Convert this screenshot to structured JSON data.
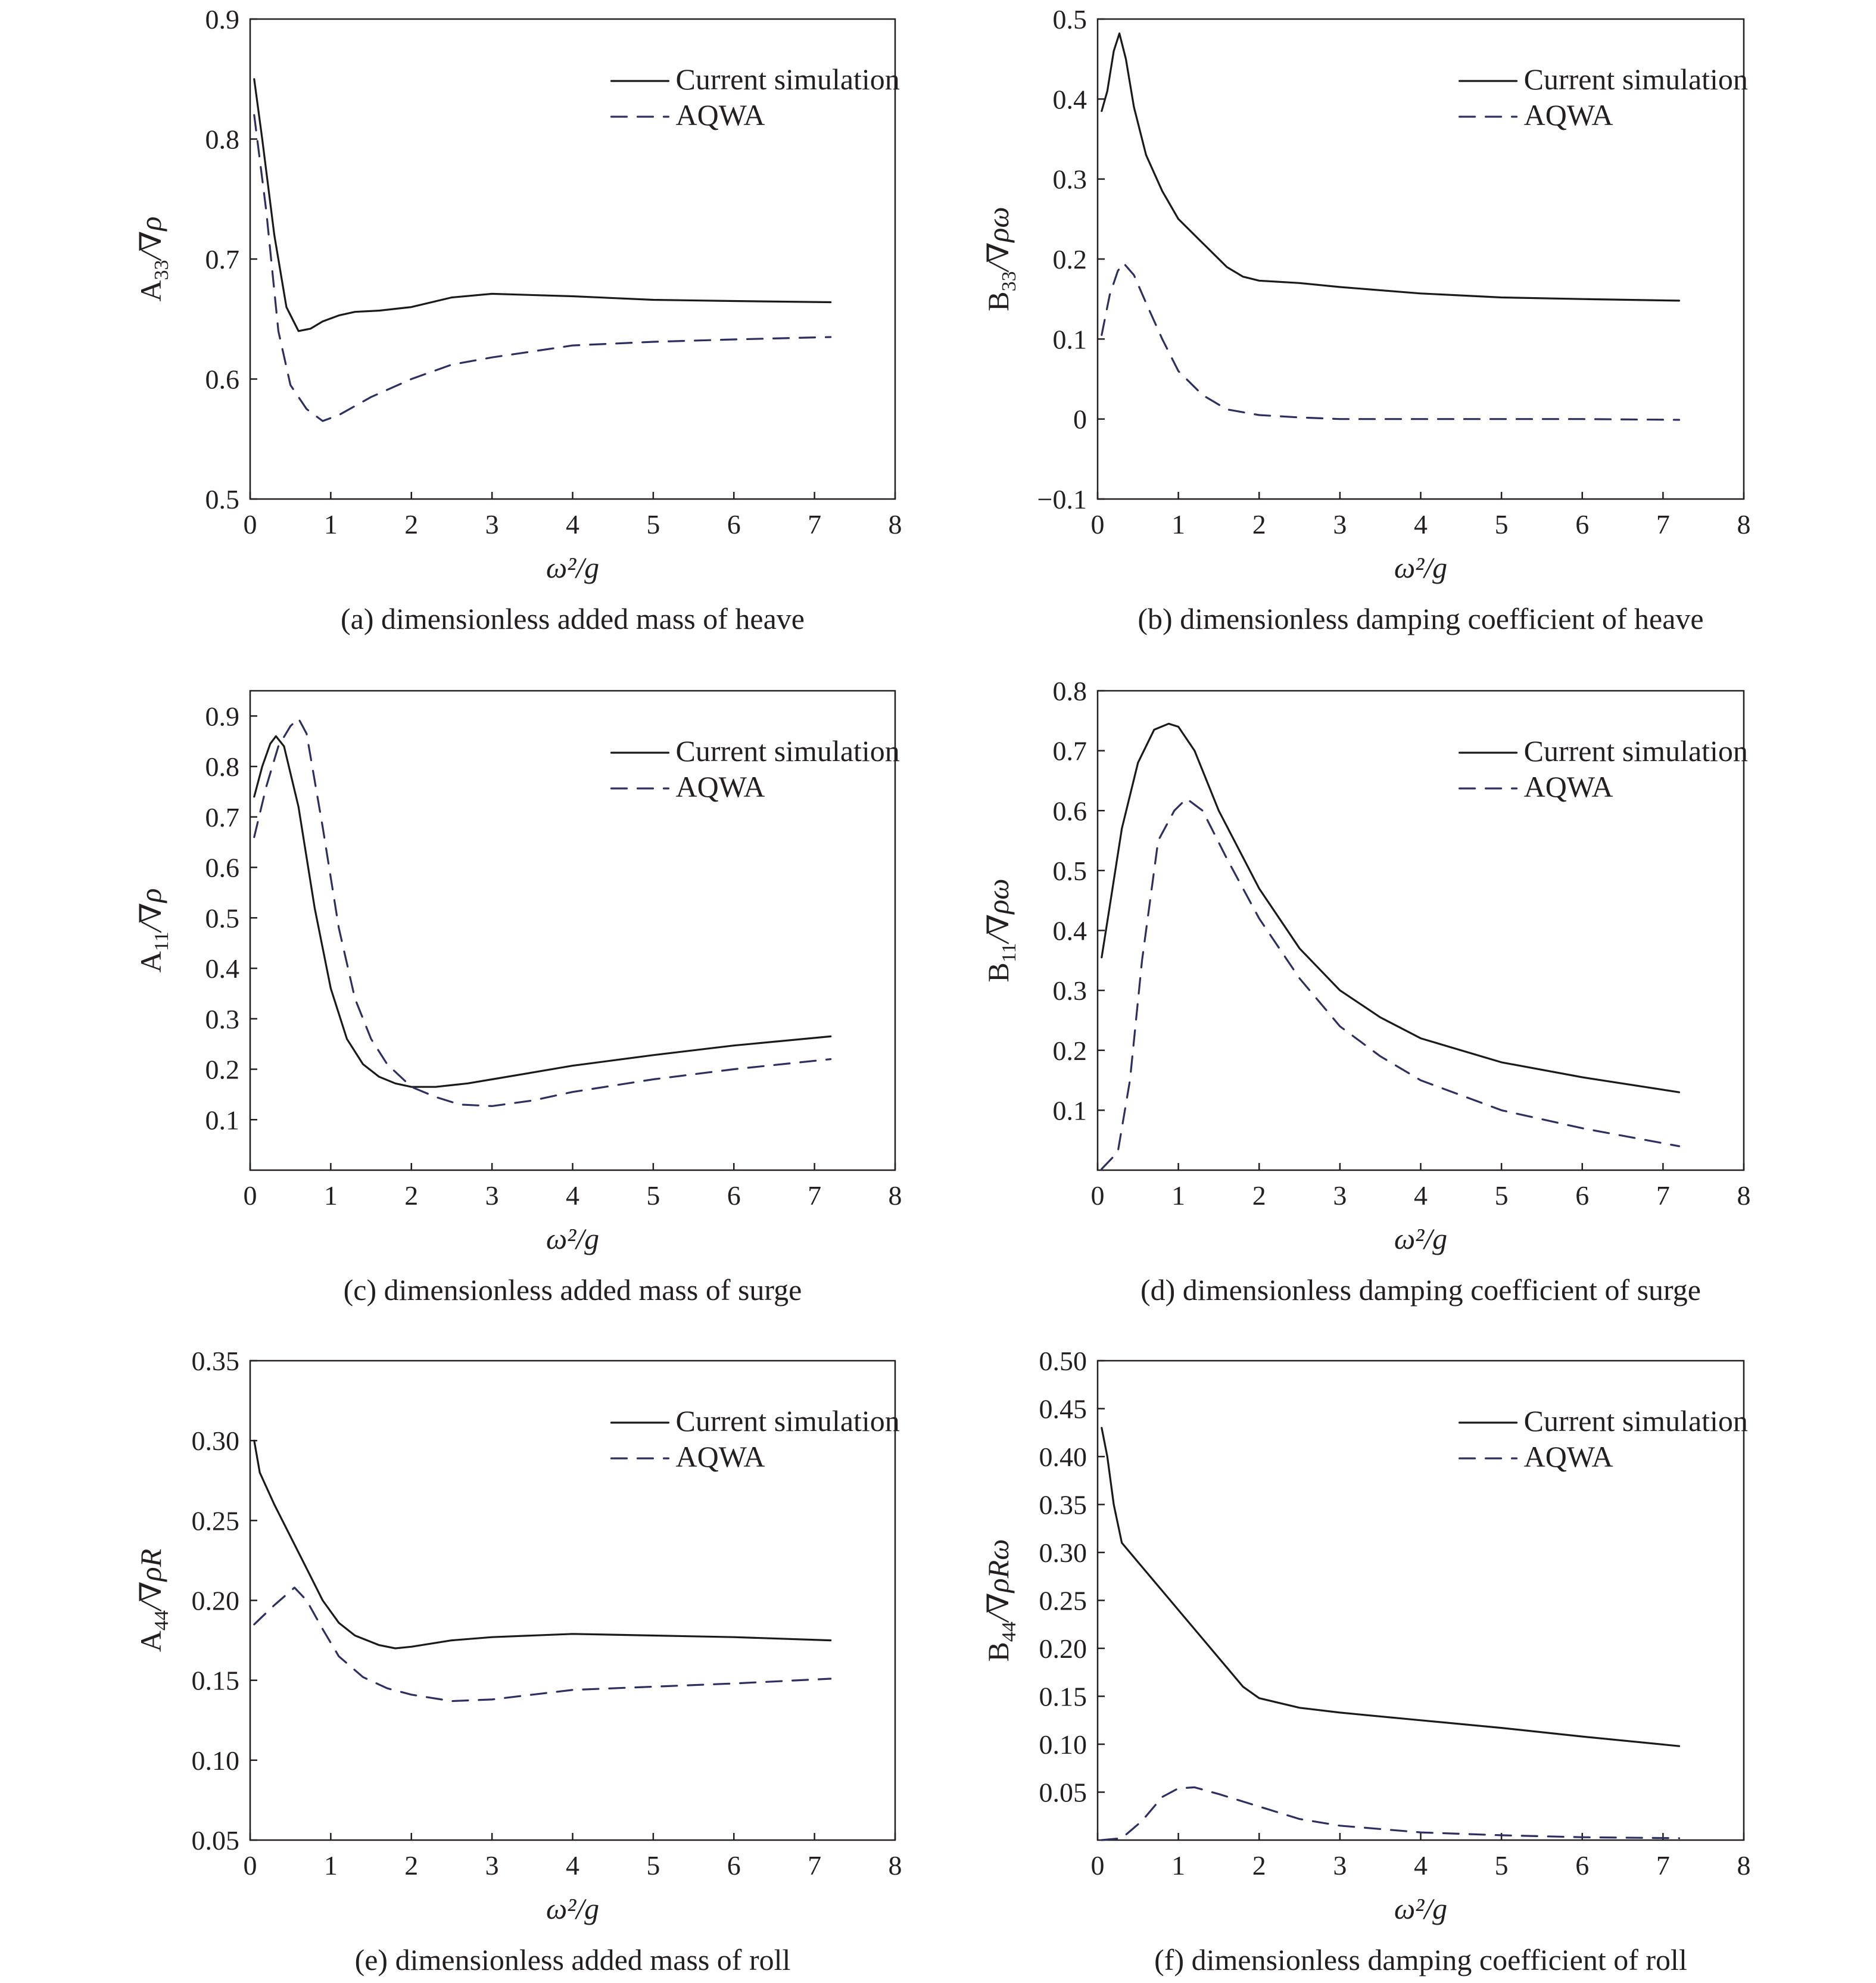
{
  "colors": {
    "ink": "#231f20",
    "current_simulation": "#1a1a1a",
    "aqwa": "#2f2f5f",
    "background": "#ffffff"
  },
  "chart_data": [
    {
      "id": "a",
      "type": "line",
      "caption": "(a) dimensionless added mass of heave",
      "xlabel": "ω²/g",
      "ylabel": {
        "base": "A",
        "sub": "33",
        "rest": "/∇ρ"
      },
      "xlim": [
        0,
        8
      ],
      "ylim": [
        0.5,
        0.9
      ],
      "xticks": [
        "0",
        "1",
        "2",
        "3",
        "4",
        "5",
        "6",
        "7",
        "8"
      ],
      "yticks": [
        "0.5",
        "0.6",
        "0.7",
        "0.8",
        "0.9"
      ],
      "grid": false,
      "legend_position": "top-right",
      "series": [
        {
          "name": "Current simulation",
          "style": "solid",
          "points": [
            [
              0.05,
              0.85
            ],
            [
              0.15,
              0.8
            ],
            [
              0.3,
              0.72
            ],
            [
              0.45,
              0.66
            ],
            [
              0.6,
              0.64
            ],
            [
              0.75,
              0.642
            ],
            [
              0.9,
              0.648
            ],
            [
              1.1,
              0.653
            ],
            [
              1.3,
              0.656
            ],
            [
              1.6,
              0.657
            ],
            [
              2.0,
              0.66
            ],
            [
              2.5,
              0.668
            ],
            [
              3.0,
              0.671
            ],
            [
              4.0,
              0.669
            ],
            [
              5.0,
              0.666
            ],
            [
              6.0,
              0.665
            ],
            [
              7.2,
              0.664
            ]
          ]
        },
        {
          "name": "AQWA",
          "style": "dashed",
          "points": [
            [
              0.05,
              0.82
            ],
            [
              0.2,
              0.74
            ],
            [
              0.35,
              0.64
            ],
            [
              0.5,
              0.595
            ],
            [
              0.7,
              0.575
            ],
            [
              0.9,
              0.565
            ],
            [
              1.1,
              0.57
            ],
            [
              1.5,
              0.585
            ],
            [
              2.0,
              0.6
            ],
            [
              2.5,
              0.612
            ],
            [
              3.0,
              0.618
            ],
            [
              3.5,
              0.623
            ],
            [
              4.0,
              0.628
            ],
            [
              5.0,
              0.631
            ],
            [
              6.0,
              0.633
            ],
            [
              7.2,
              0.635
            ]
          ]
        }
      ]
    },
    {
      "id": "b",
      "type": "line",
      "caption": "(b) dimensionless damping coefficient of heave",
      "xlabel": "ω²/g",
      "ylabel": {
        "base": "B",
        "sub": "33",
        "rest": "/∇ρω"
      },
      "xlim": [
        0,
        8
      ],
      "ylim": [
        -0.1,
        0.5
      ],
      "xticks": [
        "0",
        "1",
        "2",
        "3",
        "4",
        "5",
        "6",
        "7",
        "8"
      ],
      "yticks": [
        "−0.1",
        "0",
        "0.1",
        "0.2",
        "0.3",
        "0.4",
        "0.5"
      ],
      "grid": false,
      "legend_position": "top-right",
      "series": [
        {
          "name": "Current simulation",
          "style": "solid",
          "points": [
            [
              0.05,
              0.385
            ],
            [
              0.12,
              0.41
            ],
            [
              0.2,
              0.46
            ],
            [
              0.27,
              0.482
            ],
            [
              0.35,
              0.45
            ],
            [
              0.45,
              0.39
            ],
            [
              0.6,
              0.33
            ],
            [
              0.8,
              0.285
            ],
            [
              1.0,
              0.25
            ],
            [
              1.3,
              0.22
            ],
            [
              1.6,
              0.19
            ],
            [
              1.8,
              0.178
            ],
            [
              2.0,
              0.173
            ],
            [
              2.5,
              0.17
            ],
            [
              3.0,
              0.165
            ],
            [
              4.0,
              0.157
            ],
            [
              5.0,
              0.152
            ],
            [
              6.0,
              0.15
            ],
            [
              7.2,
              0.148
            ]
          ]
        },
        {
          "name": "AQWA",
          "style": "dashed",
          "points": [
            [
              0.05,
              0.105
            ],
            [
              0.15,
              0.155
            ],
            [
              0.25,
              0.185
            ],
            [
              0.32,
              0.195
            ],
            [
              0.45,
              0.18
            ],
            [
              0.6,
              0.145
            ],
            [
              0.8,
              0.1
            ],
            [
              1.0,
              0.06
            ],
            [
              1.3,
              0.03
            ],
            [
              1.6,
              0.012
            ],
            [
              2.0,
              0.005
            ],
            [
              2.5,
              0.002
            ],
            [
              3.0,
              0
            ],
            [
              4.0,
              0
            ],
            [
              5.0,
              0
            ],
            [
              6.0,
              0
            ],
            [
              7.2,
              -0.001
            ]
          ]
        }
      ]
    },
    {
      "id": "c",
      "type": "line",
      "caption": "(c) dimensionless added mass of surge",
      "xlabel": "ω²/g",
      "ylabel": {
        "base": "A",
        "sub": "11",
        "rest": "/∇ρ"
      },
      "xlim": [
        0,
        8
      ],
      "ylim": [
        0,
        0.95
      ],
      "xticks": [
        "0",
        "1",
        "2",
        "3",
        "4",
        "5",
        "6",
        "7",
        "8"
      ],
      "yticks": [
        "0.1",
        "0.2",
        "0.3",
        "0.4",
        "0.5",
        "0.6",
        "0.7",
        "0.8",
        "0.9"
      ],
      "grid": false,
      "legend_position": "top-right",
      "series": [
        {
          "name": "Current simulation",
          "style": "solid",
          "points": [
            [
              0.05,
              0.74
            ],
            [
              0.15,
              0.8
            ],
            [
              0.25,
              0.845
            ],
            [
              0.32,
              0.86
            ],
            [
              0.42,
              0.84
            ],
            [
              0.6,
              0.72
            ],
            [
              0.8,
              0.52
            ],
            [
              1.0,
              0.36
            ],
            [
              1.2,
              0.26
            ],
            [
              1.4,
              0.21
            ],
            [
              1.6,
              0.185
            ],
            [
              1.8,
              0.172
            ],
            [
              2.0,
              0.165
            ],
            [
              2.3,
              0.165
            ],
            [
              2.7,
              0.172
            ],
            [
              3.0,
              0.18
            ],
            [
              4.0,
              0.207
            ],
            [
              5.0,
              0.228
            ],
            [
              6.0,
              0.247
            ],
            [
              7.2,
              0.265
            ]
          ]
        },
        {
          "name": "AQWA",
          "style": "dashed",
          "points": [
            [
              0.05,
              0.66
            ],
            [
              0.2,
              0.76
            ],
            [
              0.35,
              0.84
            ],
            [
              0.5,
              0.88
            ],
            [
              0.6,
              0.895
            ],
            [
              0.7,
              0.865
            ],
            [
              0.9,
              0.68
            ],
            [
              1.1,
              0.48
            ],
            [
              1.3,
              0.34
            ],
            [
              1.5,
              0.26
            ],
            [
              1.7,
              0.21
            ],
            [
              2.0,
              0.165
            ],
            [
              2.3,
              0.145
            ],
            [
              2.6,
              0.13
            ],
            [
              3.0,
              0.127
            ],
            [
              3.5,
              0.138
            ],
            [
              4.0,
              0.155
            ],
            [
              5.0,
              0.18
            ],
            [
              6.0,
              0.2
            ],
            [
              7.2,
              0.22
            ]
          ]
        }
      ]
    },
    {
      "id": "d",
      "type": "line",
      "caption": "(d) dimensionless damping coefficient of surge",
      "xlabel": "ω²/g",
      "ylabel": {
        "base": "B",
        "sub": "11",
        "rest": "/∇ρω"
      },
      "xlim": [
        0,
        8
      ],
      "ylim": [
        0,
        0.8
      ],
      "xticks": [
        "0",
        "1",
        "2",
        "3",
        "4",
        "5",
        "6",
        "7",
        "8"
      ],
      "yticks": [
        "0.1",
        "0.2",
        "0.3",
        "0.4",
        "0.5",
        "0.6",
        "0.7",
        "0.8"
      ],
      "grid": false,
      "legend_position": "top-right",
      "series": [
        {
          "name": "Current simulation",
          "style": "solid",
          "points": [
            [
              0.05,
              0.355
            ],
            [
              0.15,
              0.44
            ],
            [
              0.3,
              0.57
            ],
            [
              0.5,
              0.68
            ],
            [
              0.7,
              0.735
            ],
            [
              0.88,
              0.745
            ],
            [
              1.0,
              0.74
            ],
            [
              1.2,
              0.7
            ],
            [
              1.5,
              0.6
            ],
            [
              2.0,
              0.47
            ],
            [
              2.5,
              0.37
            ],
            [
              3.0,
              0.3
            ],
            [
              3.5,
              0.255
            ],
            [
              4.0,
              0.22
            ],
            [
              5.0,
              0.18
            ],
            [
              6.0,
              0.155
            ],
            [
              7.2,
              0.13
            ]
          ]
        },
        {
          "name": "AQWA",
          "style": "dashed",
          "points": [
            [
              0.05,
              0.002
            ],
            [
              0.25,
              0.03
            ],
            [
              0.4,
              0.15
            ],
            [
              0.55,
              0.35
            ],
            [
              0.75,
              0.55
            ],
            [
              0.95,
              0.6
            ],
            [
              1.1,
              0.62
            ],
            [
              1.3,
              0.6
            ],
            [
              1.6,
              0.52
            ],
            [
              2.0,
              0.42
            ],
            [
              2.5,
              0.32
            ],
            [
              3.0,
              0.24
            ],
            [
              3.5,
              0.19
            ],
            [
              4.0,
              0.15
            ],
            [
              5.0,
              0.1
            ],
            [
              6.0,
              0.07
            ],
            [
              7.2,
              0.04
            ]
          ]
        }
      ]
    },
    {
      "id": "e",
      "type": "line",
      "caption": "(e) dimensionless added mass of roll",
      "xlabel": "ω²/g",
      "ylabel": {
        "base": "A",
        "sub": "44",
        "rest": "/∇ρR"
      },
      "xlim": [
        0,
        8
      ],
      "ylim": [
        0.05,
        0.35
      ],
      "xticks": [
        "0",
        "1",
        "2",
        "3",
        "4",
        "5",
        "6",
        "7",
        "8"
      ],
      "yticks": [
        "0.05",
        "0.10",
        "0.15",
        "0.20",
        "0.25",
        "0.30",
        "0.35"
      ],
      "grid": false,
      "legend_position": "top-right",
      "series": [
        {
          "name": "Current simulation",
          "style": "solid",
          "points": [
            [
              0.05,
              0.3
            ],
            [
              0.12,
              0.28
            ],
            [
              0.3,
              0.26
            ],
            [
              0.5,
              0.24
            ],
            [
              0.7,
              0.22
            ],
            [
              0.9,
              0.2
            ],
            [
              1.1,
              0.186
            ],
            [
              1.3,
              0.178
            ],
            [
              1.6,
              0.172
            ],
            [
              1.8,
              0.17
            ],
            [
              2.0,
              0.171
            ],
            [
              2.5,
              0.175
            ],
            [
              3.0,
              0.177
            ],
            [
              4.0,
              0.179
            ],
            [
              5.0,
              0.178
            ],
            [
              6.0,
              0.177
            ],
            [
              7.2,
              0.175
            ]
          ]
        },
        {
          "name": "AQWA",
          "style": "dashed",
          "points": [
            [
              0.05,
              0.185
            ],
            [
              0.3,
              0.197
            ],
            [
              0.55,
              0.208
            ],
            [
              0.7,
              0.2
            ],
            [
              0.9,
              0.182
            ],
            [
              1.1,
              0.165
            ],
            [
              1.4,
              0.152
            ],
            [
              1.7,
              0.145
            ],
            [
              2.0,
              0.141
            ],
            [
              2.5,
              0.137
            ],
            [
              3.0,
              0.138
            ],
            [
              3.5,
              0.141
            ],
            [
              4.0,
              0.144
            ],
            [
              5.0,
              0.146
            ],
            [
              6.0,
              0.148
            ],
            [
              7.2,
              0.151
            ]
          ]
        }
      ]
    },
    {
      "id": "f",
      "type": "line",
      "caption": "(f) dimensionless damping coefficient of roll",
      "xlabel": "ω²/g",
      "ylabel": {
        "base": "B",
        "sub": "44",
        "rest": "/∇ρRω"
      },
      "xlim": [
        0,
        8
      ],
      "ylim": [
        0,
        0.5
      ],
      "xticks": [
        "0",
        "1",
        "2",
        "3",
        "4",
        "5",
        "6",
        "7",
        "8"
      ],
      "yticks": [
        "0.05",
        "0.10",
        "0.15",
        "0.20",
        "0.25",
        "0.30",
        "0.35",
        "0.40",
        "0.45",
        "0.50"
      ],
      "grid": false,
      "legend_position": "top-right",
      "series": [
        {
          "name": "Current simulation",
          "style": "solid",
          "points": [
            [
              0.05,
              0.43
            ],
            [
              0.12,
              0.4
            ],
            [
              0.2,
              0.35
            ],
            [
              0.3,
              0.31
            ],
            [
              0.5,
              0.29
            ],
            [
              0.8,
              0.26
            ],
            [
              1.0,
              0.24
            ],
            [
              1.3,
              0.21
            ],
            [
              1.6,
              0.18
            ],
            [
              1.8,
              0.16
            ],
            [
              2.0,
              0.148
            ],
            [
              2.5,
              0.138
            ],
            [
              3.0,
              0.133
            ],
            [
              4.0,
              0.125
            ],
            [
              5.0,
              0.117
            ],
            [
              6.0,
              0.108
            ],
            [
              7.2,
              0.098
            ]
          ]
        },
        {
          "name": "AQWA",
          "style": "dashed",
          "points": [
            [
              0.05,
              0
            ],
            [
              0.3,
              0.002
            ],
            [
              0.55,
              0.02
            ],
            [
              0.8,
              0.045
            ],
            [
              1.0,
              0.054
            ],
            [
              1.2,
              0.055
            ],
            [
              1.5,
              0.048
            ],
            [
              2.0,
              0.035
            ],
            [
              2.5,
              0.022
            ],
            [
              3.0,
              0.015
            ],
            [
              4.0,
              0.008
            ],
            [
              5.0,
              0.005
            ],
            [
              6.0,
              0.003
            ],
            [
              7.2,
              0.002
            ]
          ]
        }
      ]
    }
  ]
}
